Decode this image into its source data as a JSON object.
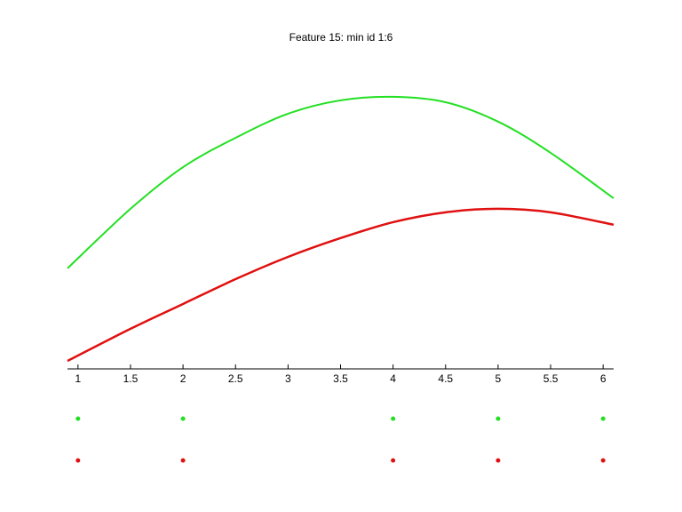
{
  "chart_data": {
    "type": "line",
    "title": "Feature 15: min id 1:6",
    "x": [
      0.9,
      1.5,
      2,
      2.5,
      3,
      3.5,
      4,
      4.5,
      5,
      5.5,
      6.1
    ],
    "series": [
      {
        "color": "#22e022",
        "values": [
          0.316,
          0.503,
          0.634,
          0.726,
          0.802,
          0.844,
          0.855,
          0.838,
          0.777,
          0.679,
          0.536
        ],
        "points": [
          1,
          2,
          4,
          5,
          6
        ]
      },
      {
        "color": "#e01010",
        "values": [
          0.025,
          0.126,
          0.204,
          0.282,
          0.352,
          0.411,
          0.461,
          0.492,
          0.503,
          0.492,
          0.453
        ],
        "points": [
          1,
          2,
          4,
          5,
          6
        ]
      }
    ],
    "xlim": [
      0.9,
      6.1
    ],
    "ylim": [
      0,
      1
    ],
    "xticks": [
      1,
      1.5,
      2,
      2.5,
      3,
      3.5,
      4,
      4.5,
      5,
      5.5,
      6
    ]
  }
}
